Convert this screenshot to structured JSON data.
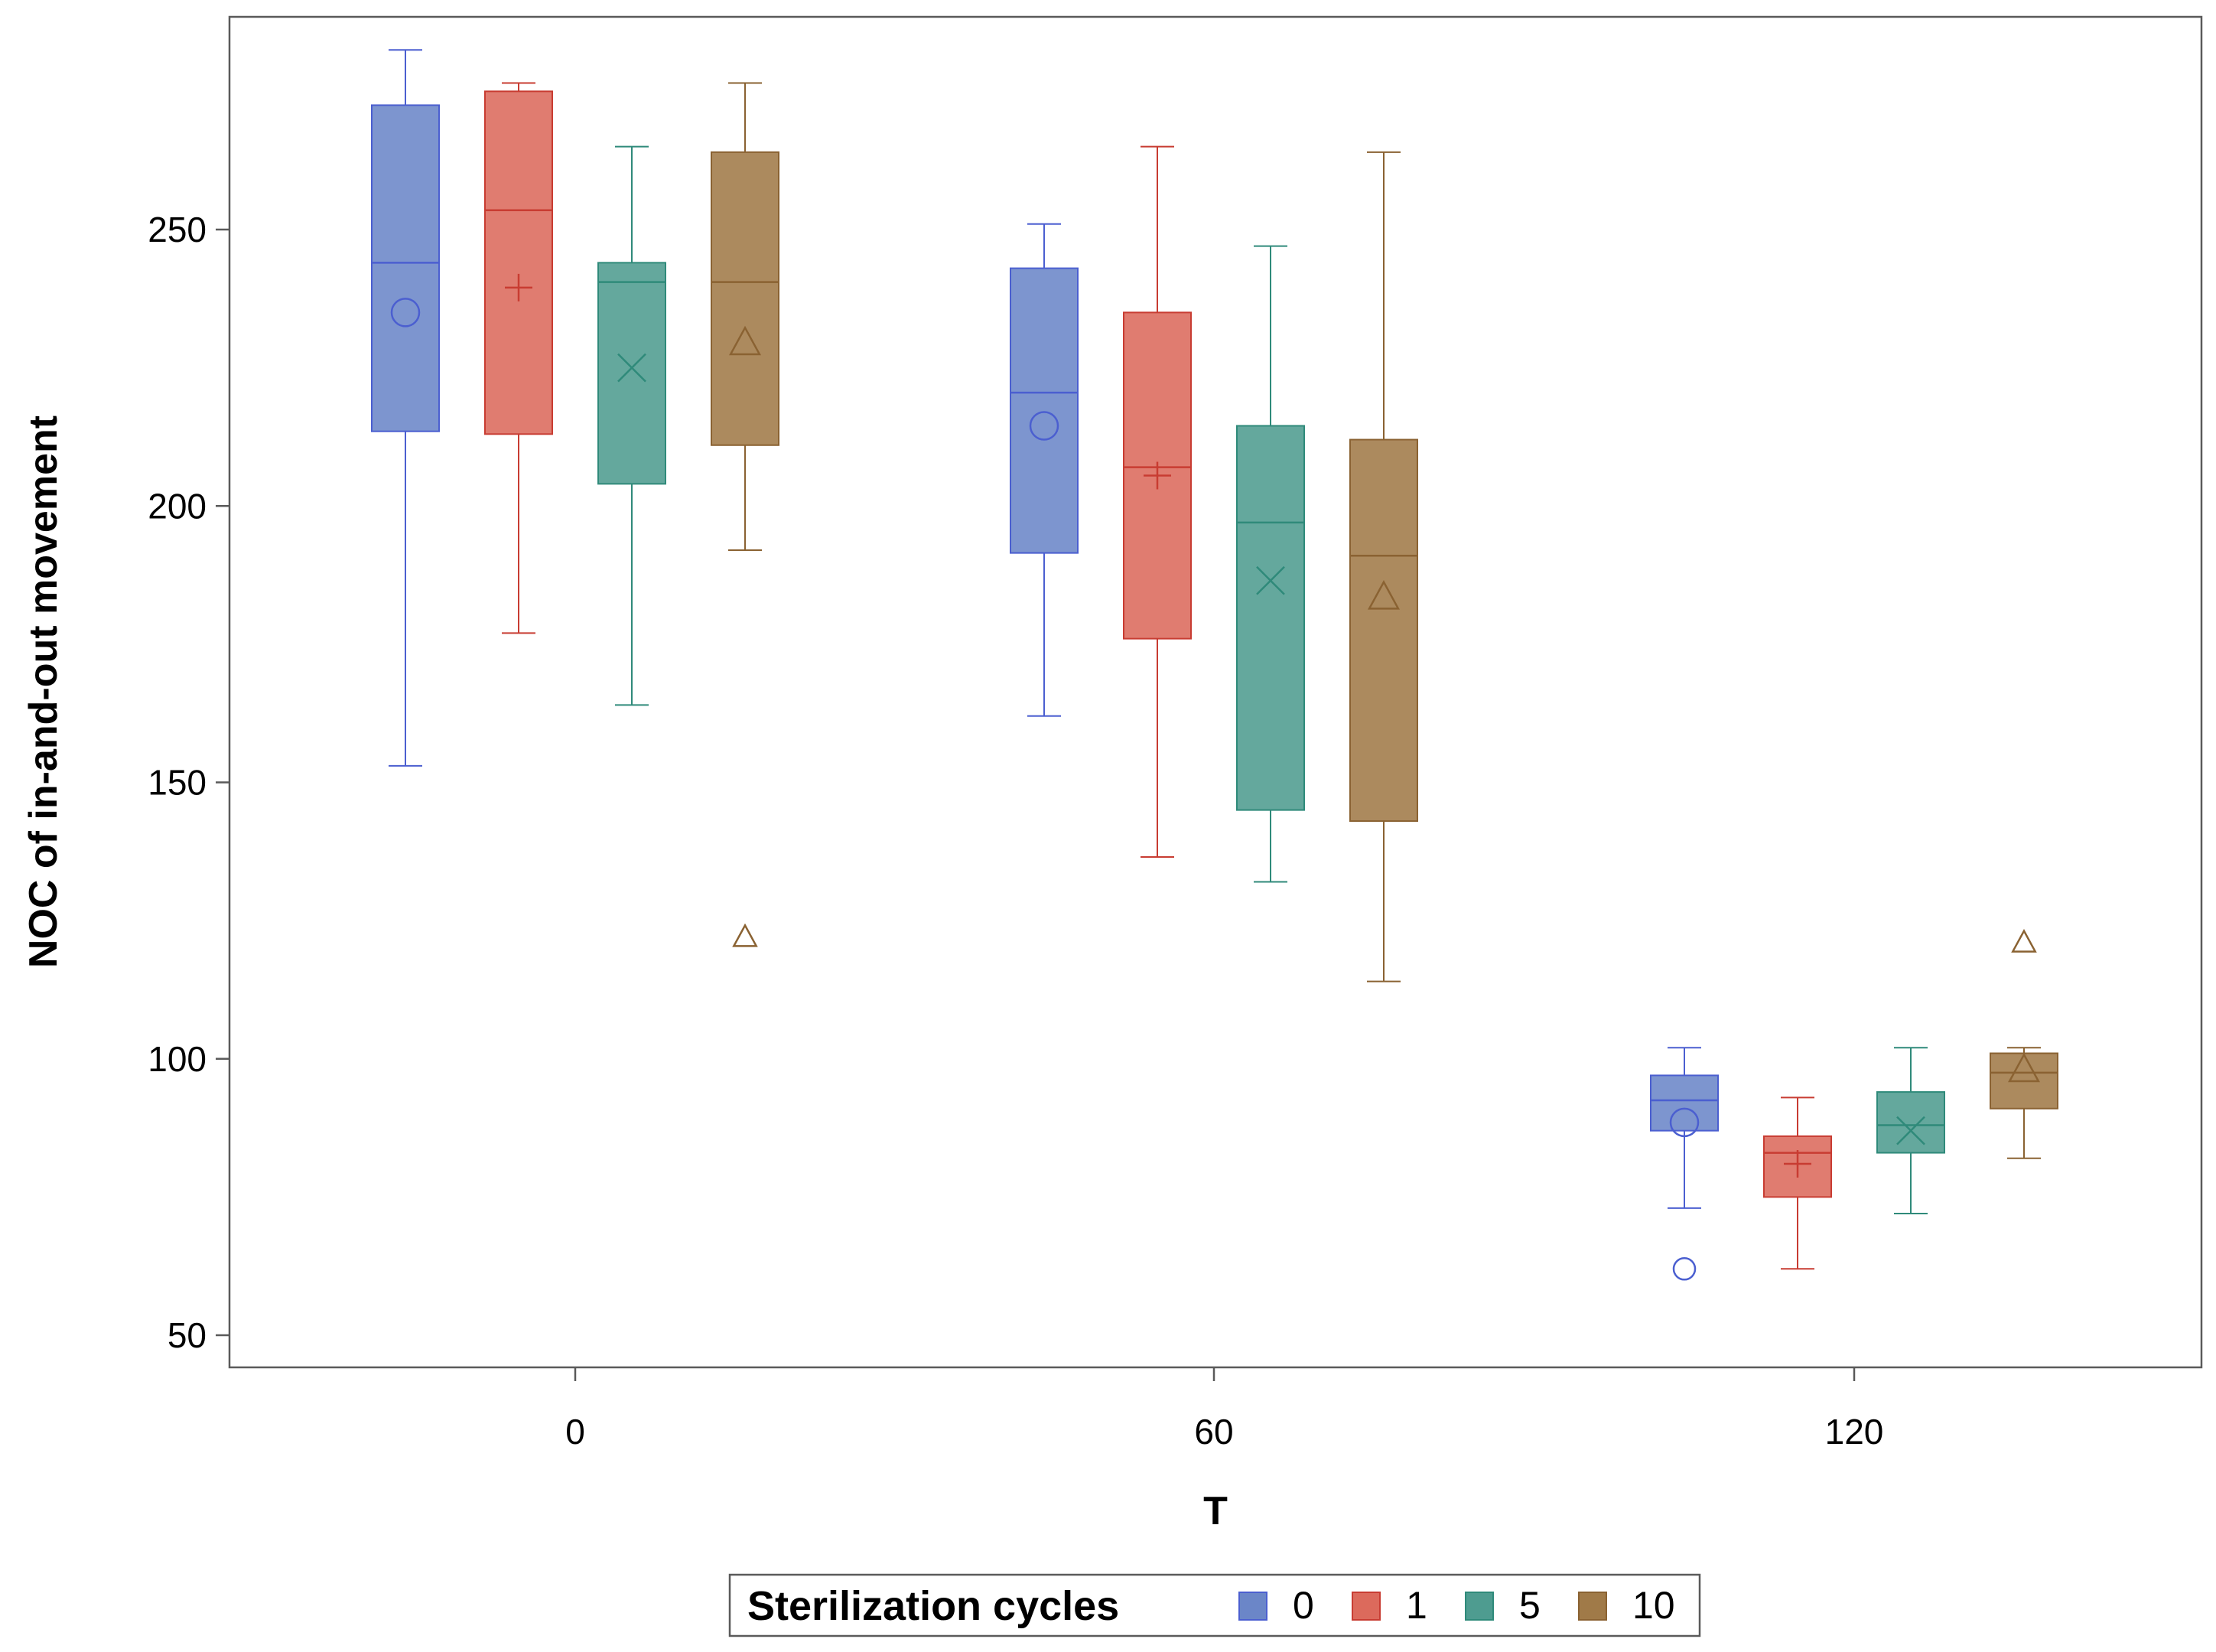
{
  "chart_data": {
    "type": "boxplot",
    "title": "",
    "xlabel": "T",
    "ylabel": "NOC of in-and-out movement",
    "categories": [
      "0",
      "60",
      "120"
    ],
    "yticks": [
      50,
      100,
      150,
      200,
      250
    ],
    "ylim": [
      44.5,
      288.5
    ],
    "grid": false,
    "legend": {
      "title": "Sterilization cycles",
      "position": "bottom-center",
      "entries": [
        "0",
        "1",
        "5",
        "10"
      ]
    },
    "series": [
      {
        "name": "0",
        "color": "#6b86c8",
        "edge": "#4b5fd0",
        "mean_marker": "circle",
        "boxes": [
          {
            "category": "0",
            "min": 153,
            "q1": 213.5,
            "median": 244,
            "q3": 272.5,
            "max": 282.5,
            "mean": 235,
            "outliers": []
          },
          {
            "category": "60",
            "min": 162,
            "q1": 191.5,
            "median": 220.5,
            "q3": 243,
            "max": 251,
            "mean": 214.5,
            "outliers": []
          },
          {
            "category": "120",
            "min": 73,
            "q1": 87,
            "median": 92.5,
            "q3": 97,
            "max": 102,
            "mean": 88.5,
            "outliers": [
              62
            ]
          }
        ]
      },
      {
        "name": "1",
        "color": "#dc6a5c",
        "edge": "#c83c32",
        "mean_marker": "plus",
        "boxes": [
          {
            "category": "0",
            "min": 177,
            "q1": 213,
            "median": 253.5,
            "q3": 275,
            "max": 276.5,
            "mean": 239.5,
            "outliers": []
          },
          {
            "category": "60",
            "min": 136.5,
            "q1": 176,
            "median": 207,
            "q3": 235,
            "max": 265,
            "mean": 205.5,
            "outliers": []
          },
          {
            "category": "120",
            "min": 62,
            "q1": 75,
            "median": 83,
            "q3": 86,
            "max": 93,
            "mean": 81,
            "outliers": []
          }
        ]
      },
      {
        "name": "5",
        "color": "#4e9c90",
        "edge": "#2f8a7a",
        "mean_marker": "x",
        "boxes": [
          {
            "category": "0",
            "min": 164,
            "q1": 204,
            "median": 240.5,
            "q3": 244,
            "max": 265,
            "mean": 225,
            "outliers": []
          },
          {
            "category": "60",
            "min": 132,
            "q1": 145,
            "median": 197,
            "q3": 214.5,
            "max": 247,
            "mean": 186.5,
            "outliers": []
          },
          {
            "category": "120",
            "min": 72,
            "q1": 83,
            "median": 88,
            "q3": 94,
            "max": 102,
            "mean": 87,
            "outliers": []
          }
        ]
      },
      {
        "name": "10",
        "color": "#a07a48",
        "edge": "#8a6232",
        "mean_marker": "triangle",
        "boxes": [
          {
            "category": "0",
            "min": 192,
            "q1": 211,
            "median": 240.5,
            "q3": 264,
            "max": 276.5,
            "mean": 229.5,
            "outliers": [
              122
            ]
          },
          {
            "category": "60",
            "min": 114,
            "q1": 143,
            "median": 191,
            "q3": 212,
            "max": 264,
            "mean": 183.5,
            "outliers": []
          },
          {
            "category": "120",
            "min": 82,
            "q1": 91,
            "median": 97.5,
            "q3": 101,
            "max": 102,
            "mean": 98,
            "outliers": [
              121
            ]
          }
        ]
      }
    ]
  }
}
